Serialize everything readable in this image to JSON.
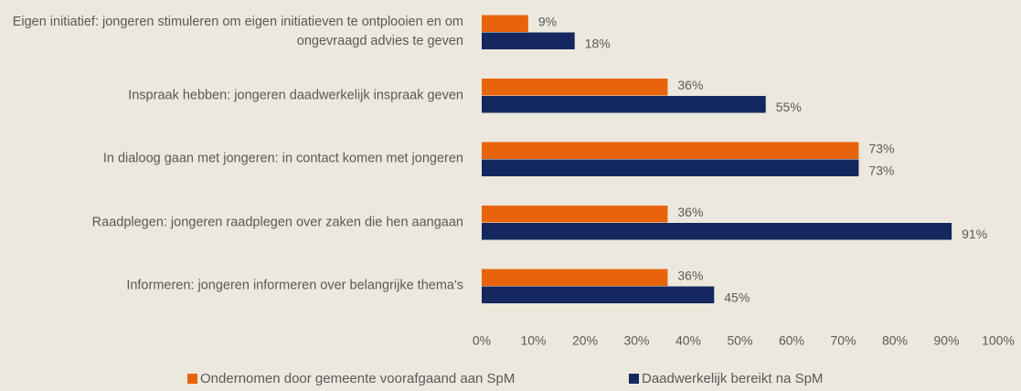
{
  "chart_data": {
    "type": "barh",
    "categories": [
      "Eigen initiatief: jongeren stimuleren om eigen initiatieven te ontplooien en om ongevraagd advies te geven",
      "Inspraak hebben: jongeren daadwerkelijk inspraak geven",
      "In dialoog gaan met jongeren: in contact komen met jongeren",
      "Raadplegen: jongeren raadplegen over zaken die hen aangaan",
      "Informeren: jongeren informeren over belangrijke thema's"
    ],
    "series": [
      {
        "name": "Ondernomen door gemeente voorafgaand aan SpM",
        "color": "#e8640c",
        "values": [
          9,
          36,
          73,
          36,
          36
        ],
        "value_labels": [
          "9%",
          "36%",
          "73%",
          "36%",
          "36%"
        ]
      },
      {
        "name": "Daadwerkelijk bereikt na SpM",
        "color": "#14285f",
        "values": [
          18,
          55,
          73,
          91,
          45
        ],
        "value_labels": [
          "18%",
          "55%",
          "73%",
          "91%",
          "45%"
        ]
      }
    ],
    "xlim": [
      0,
      100
    ],
    "xticks": [
      {
        "value": 0,
        "label": "0%"
      },
      {
        "value": 10,
        "label": "10%"
      },
      {
        "value": 20,
        "label": "20%"
      },
      {
        "value": 30,
        "label": "30%"
      },
      {
        "value": 40,
        "label": "40%"
      },
      {
        "value": 50,
        "label": "50%"
      },
      {
        "value": 60,
        "label": "60%"
      },
      {
        "value": 70,
        "label": "70%"
      },
      {
        "value": 80,
        "label": "80%"
      },
      {
        "value": 90,
        "label": "90%"
      },
      {
        "value": 100,
        "label": "100%"
      }
    ],
    "grid": false,
    "legend": "bottom"
  }
}
